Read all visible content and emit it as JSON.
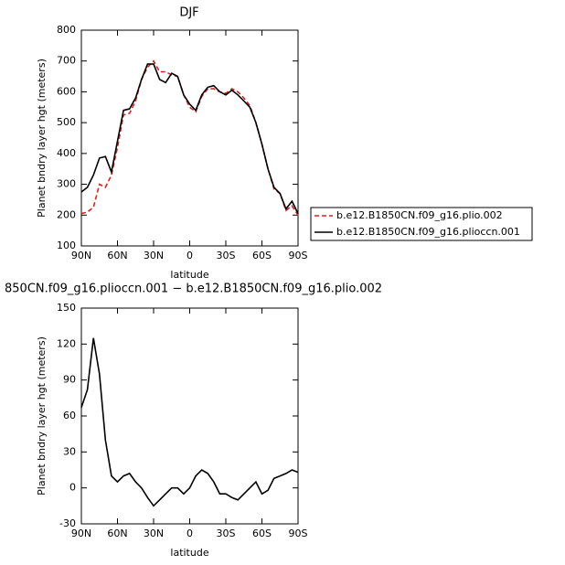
{
  "chart_data": [
    {
      "type": "line",
      "title": "DJF",
      "xlabel": "latitude",
      "ylabel": "Planet bndry layer hgt (meters)",
      "x": [
        90,
        85,
        80,
        75,
        70,
        65,
        60,
        55,
        50,
        45,
        40,
        35,
        30,
        25,
        20,
        15,
        10,
        5,
        0,
        -5,
        -10,
        -15,
        -20,
        -25,
        -30,
        -35,
        -40,
        -45,
        -50,
        -55,
        -60,
        -65,
        -70,
        -75,
        -80,
        -85,
        -90
      ],
      "series": [
        {
          "name": "b.e12.B1850CN.f09_g16.plio.002",
          "color": "#e02020",
          "dash": true,
          "values": [
            205,
            210,
            225,
            300,
            290,
            330,
            420,
            525,
            530,
            570,
            640,
            680,
            700,
            665,
            665,
            655,
            650,
            590,
            550,
            535,
            585,
            610,
            610,
            600,
            595,
            610,
            600,
            580,
            555,
            500,
            430,
            350,
            285,
            270,
            215,
            230,
            200
          ]
        },
        {
          "name": "b.e12.B1850CN.f09_g16.plioccn.001",
          "color": "#000000",
          "dash": false,
          "values": [
            275,
            290,
            330,
            385,
            390,
            340,
            440,
            540,
            545,
            580,
            640,
            690,
            690,
            640,
            630,
            660,
            650,
            590,
            560,
            540,
            590,
            615,
            620,
            600,
            590,
            605,
            590,
            570,
            550,
            500,
            430,
            350,
            290,
            270,
            220,
            245,
            205
          ]
        }
      ],
      "xlim": [
        90,
        -90
      ],
      "xticks": [
        {
          "value": 90,
          "label": "90N"
        },
        {
          "value": 60,
          "label": "60N"
        },
        {
          "value": 30,
          "label": "30N"
        },
        0,
        {
          "value": -30,
          "label": "30S"
        },
        {
          "value": -60,
          "label": "60S"
        },
        {
          "value": -90,
          "label": "90S"
        }
      ],
      "ylim": [
        100,
        800
      ],
      "yticks": [
        100,
        200,
        300,
        400,
        500,
        600,
        700,
        800
      ]
    },
    {
      "type": "line",
      "title": "850CN.f09_g16.plioccn.001 − b.e12.B1850CN.f09_g16.plio.002",
      "xlabel": "latitude",
      "ylabel": "Planet bndry layer hgt (meters)",
      "x": [
        90,
        85,
        80,
        75,
        70,
        65,
        60,
        55,
        50,
        45,
        40,
        35,
        30,
        25,
        20,
        15,
        10,
        5,
        0,
        -5,
        -10,
        -15,
        -20,
        -25,
        -30,
        -35,
        -40,
        -45,
        -50,
        -55,
        -60,
        -65,
        -70,
        -75,
        -80,
        -85,
        -90
      ],
      "values": [
        67,
        82,
        125,
        95,
        40,
        10,
        5,
        10,
        12,
        5,
        0,
        -8,
        -15,
        -10,
        -5,
        0,
        0,
        -5,
        0,
        10,
        15,
        12,
        5,
        -5,
        -5,
        -8,
        -10,
        -5,
        0,
        5,
        -5,
        -2,
        8,
        10,
        12,
        15,
        13
      ],
      "color": "#000000",
      "xlim": [
        90,
        -90
      ],
      "xticks": [
        {
          "value": 90,
          "label": "90N"
        },
        {
          "value": 60,
          "label": "60N"
        },
        {
          "value": 30,
          "label": "30N"
        },
        0,
        {
          "value": -30,
          "label": "30S"
        },
        {
          "value": -60,
          "label": "60S"
        },
        {
          "value": -90,
          "label": "90S"
        }
      ],
      "ylim": [
        -30,
        150
      ],
      "yticks": [
        -30,
        0,
        30,
        60,
        90,
        120,
        150
      ]
    }
  ]
}
